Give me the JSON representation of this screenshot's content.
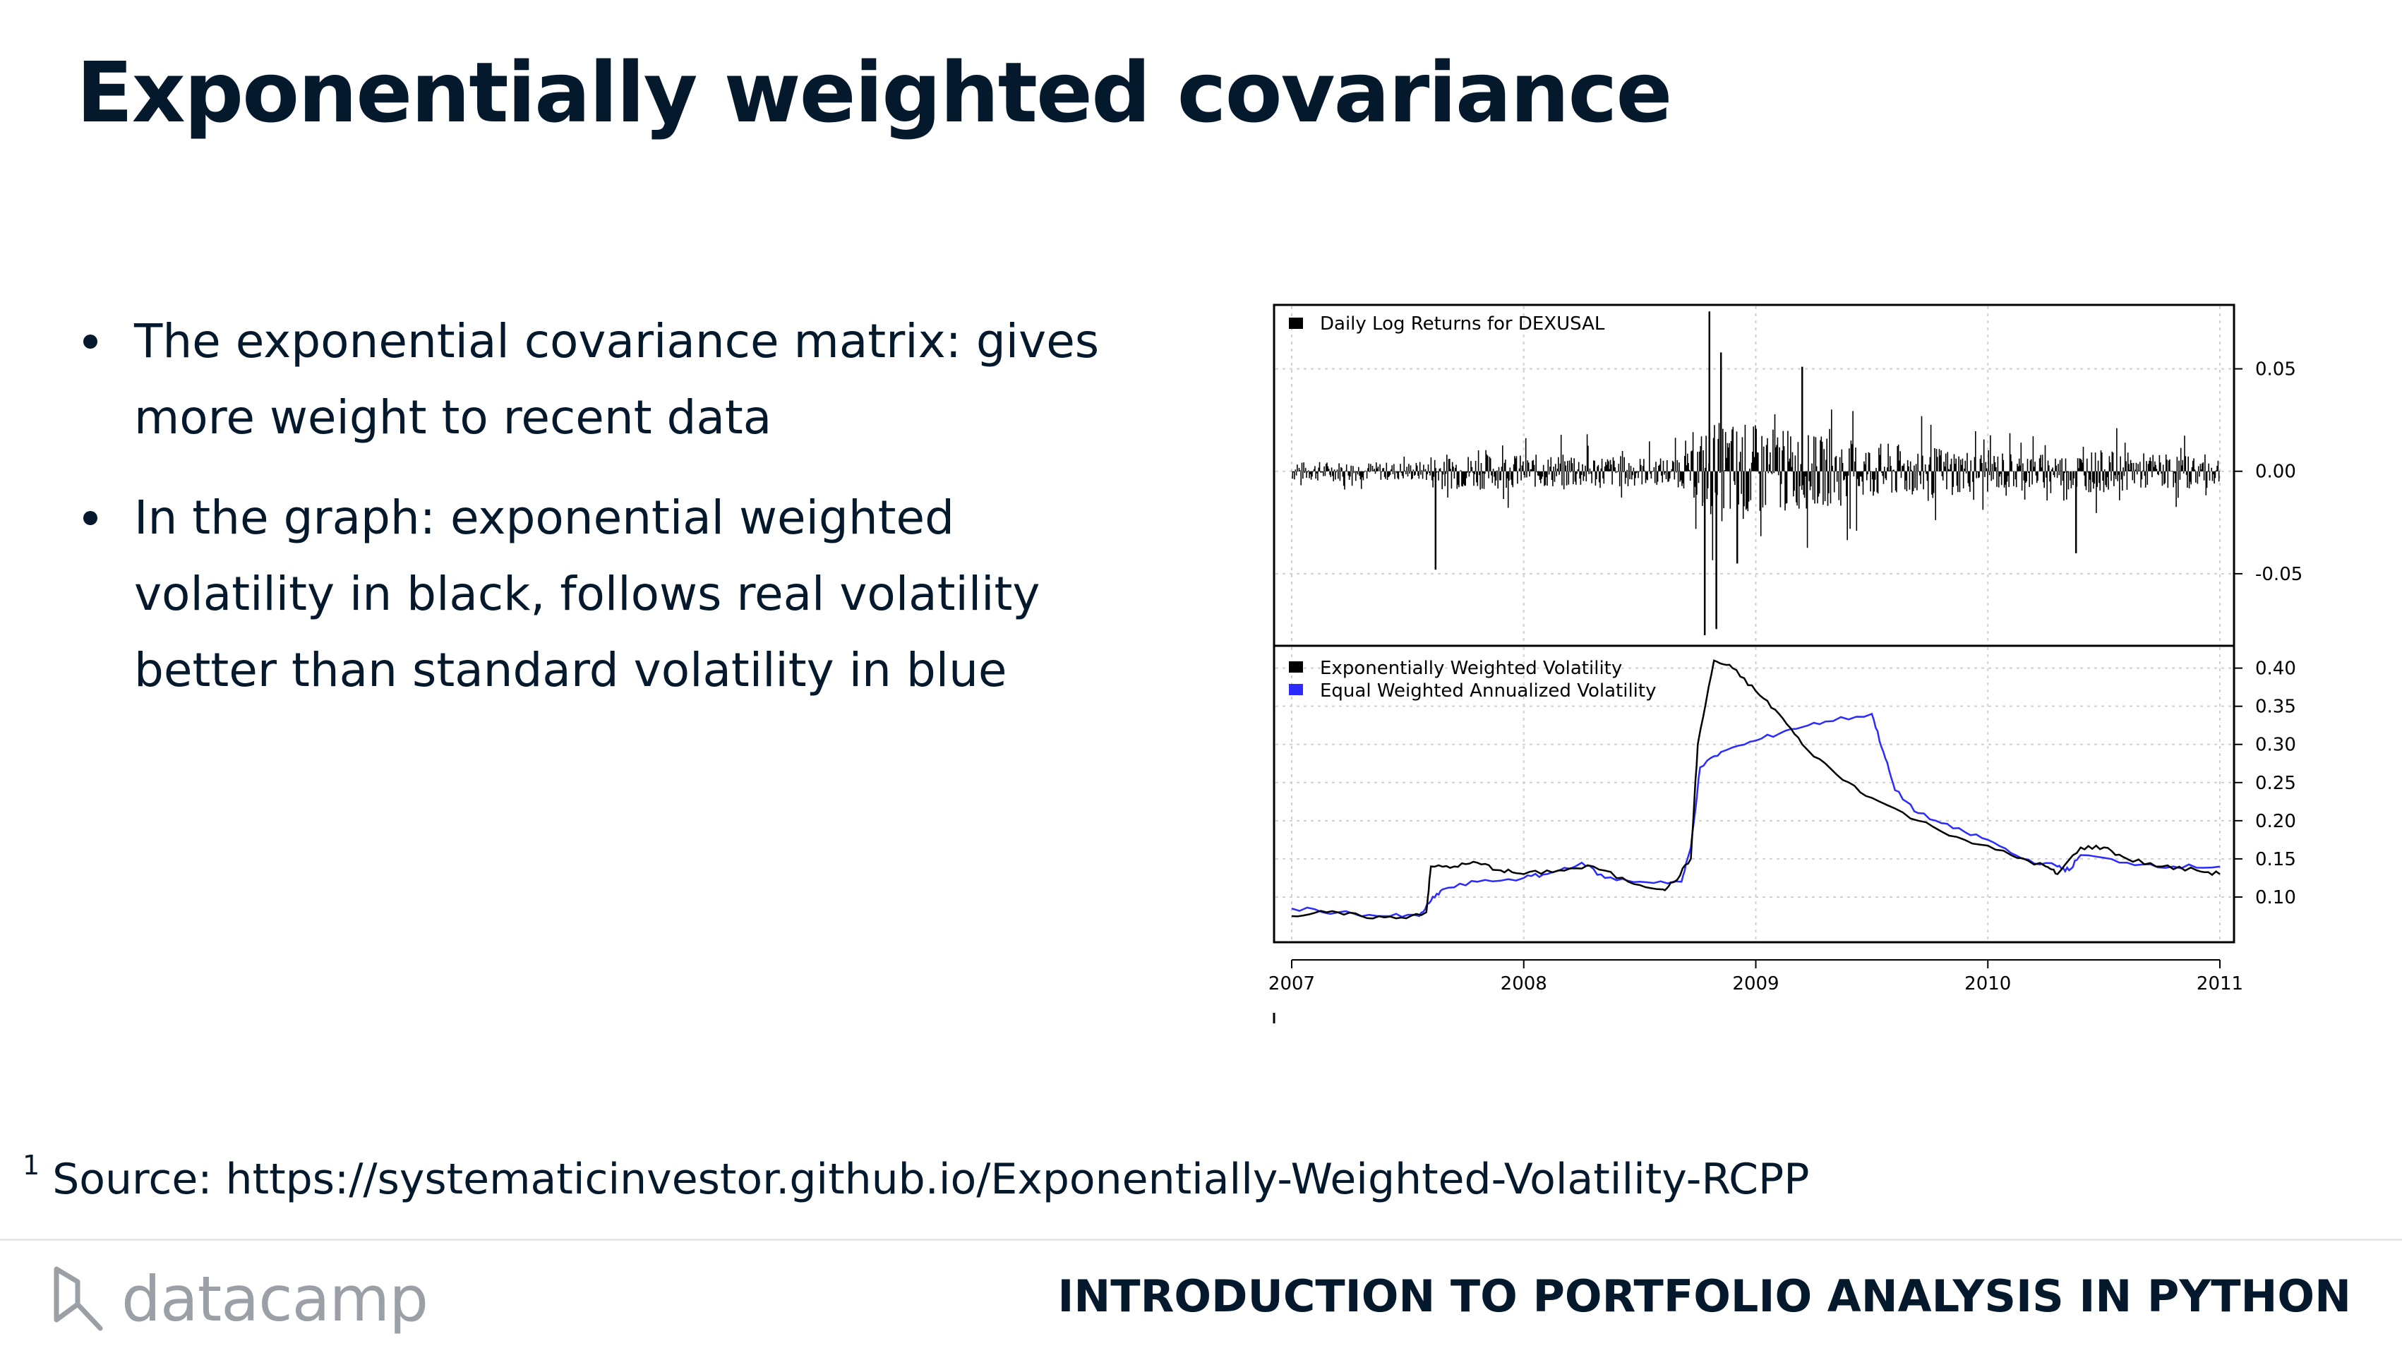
{
  "slide": {
    "title": "Exponentially weighted covariance",
    "bullets": [
      {
        "line1": "The exponential covariance matrix: gives",
        "line2": "more weight to recent data"
      },
      {
        "line1": "In the graph: exponential weighted",
        "line2": "volatility in black, follows real volatility",
        "line3": "better than standard volatility in blue"
      }
    ],
    "footnote_marker": "1",
    "footnote_text": "Source: https://systematicinvestor.github.io/Exponentially-Weighted-Volatility-RCPP",
    "logo_text": "datacamp",
    "course_title": "INTRODUCTION TO PORTFOLIO ANALYSIS IN PYTHON"
  },
  "colors": {
    "text": "#05192d",
    "series_black": "#000000",
    "series_blue": "#2b2bff",
    "grid": "#d0d0d0",
    "logo": "#9aa0a6"
  },
  "chart_data": [
    {
      "type": "bar",
      "legend": [
        {
          "name": "Daily Log Returns for DEXUSAL",
          "color": "#000000"
        }
      ],
      "legend_position": "top-left",
      "xlim": [
        2007,
        2011
      ],
      "ylim": [
        -0.08,
        0.075
      ],
      "yticks": [
        0.05,
        0.0,
        -0.05
      ],
      "ytick_labels": [
        "0.05",
        "0.00",
        "-0.05"
      ],
      "grid": true,
      "spikes": [
        {
          "x": 2007.62,
          "y": -0.048
        },
        {
          "x": 2008.78,
          "y": -0.08
        },
        {
          "x": 2008.8,
          "y": 0.078
        },
        {
          "x": 2008.83,
          "y": -0.077
        },
        {
          "x": 2008.85,
          "y": 0.058
        },
        {
          "x": 2008.92,
          "y": -0.045
        },
        {
          "x": 2009.2,
          "y": 0.051
        },
        {
          "x": 2010.38,
          "y": -0.04
        }
      ]
    },
    {
      "type": "line",
      "legend_position": "top-left",
      "xlim": [
        2007,
        2011
      ],
      "ylim": [
        0.05,
        0.42
      ],
      "yticks": [
        0.4,
        0.35,
        0.3,
        0.25,
        0.2,
        0.15,
        0.1
      ],
      "ytick_labels": [
        "0.40",
        "0.35",
        "0.30",
        "0.25",
        "0.20",
        "0.15",
        "0.10"
      ],
      "xticks": [
        2007,
        2008,
        2009,
        2010,
        2011
      ],
      "xtick_labels": [
        "2007",
        "2008",
        "2009",
        "2010",
        "2011"
      ],
      "grid": true,
      "series": [
        {
          "name": "Exponentially Weighted Volatility",
          "color": "#000000",
          "x": [
            2007.0,
            2007.15,
            2007.3,
            2007.45,
            2007.58,
            2007.6,
            2007.7,
            2007.8,
            2007.9,
            2008.0,
            2008.15,
            2008.3,
            2008.45,
            2008.6,
            2008.65,
            2008.72,
            2008.75,
            2008.82,
            2008.9,
            2009.0,
            2009.1,
            2009.2,
            2009.35,
            2009.5,
            2009.7,
            2009.9,
            2010.1,
            2010.25,
            2010.3,
            2010.4,
            2010.5,
            2010.6,
            2010.75,
            2010.9,
            2011.0
          ],
          "y": [
            0.075,
            0.08,
            0.075,
            0.072,
            0.08,
            0.14,
            0.14,
            0.145,
            0.135,
            0.13,
            0.135,
            0.14,
            0.12,
            0.11,
            0.12,
            0.15,
            0.3,
            0.41,
            0.4,
            0.37,
            0.34,
            0.3,
            0.26,
            0.23,
            0.2,
            0.175,
            0.155,
            0.14,
            0.13,
            0.165,
            0.165,
            0.15,
            0.14,
            0.135,
            0.13
          ]
        },
        {
          "name": "Equal Weighted Annualized Volatility",
          "color": "#2b2bff",
          "x": [
            2007.0,
            2007.2,
            2007.4,
            2007.55,
            2007.6,
            2007.65,
            2007.8,
            2008.0,
            2008.1,
            2008.25,
            2008.35,
            2008.5,
            2008.68,
            2008.72,
            2008.76,
            2008.85,
            2009.0,
            2009.15,
            2009.3,
            2009.5,
            2009.55,
            2009.6,
            2009.7,
            2009.85,
            2010.0,
            2010.15,
            2010.3,
            2010.35,
            2010.4,
            2010.6,
            2010.8,
            2011.0
          ],
          "y": [
            0.085,
            0.08,
            0.075,
            0.075,
            0.095,
            0.11,
            0.12,
            0.125,
            0.13,
            0.145,
            0.125,
            0.12,
            0.12,
            0.165,
            0.27,
            0.29,
            0.305,
            0.32,
            0.33,
            0.34,
            0.29,
            0.24,
            0.21,
            0.19,
            0.175,
            0.15,
            0.14,
            0.135,
            0.155,
            0.145,
            0.14,
            0.14
          ]
        }
      ]
    }
  ]
}
